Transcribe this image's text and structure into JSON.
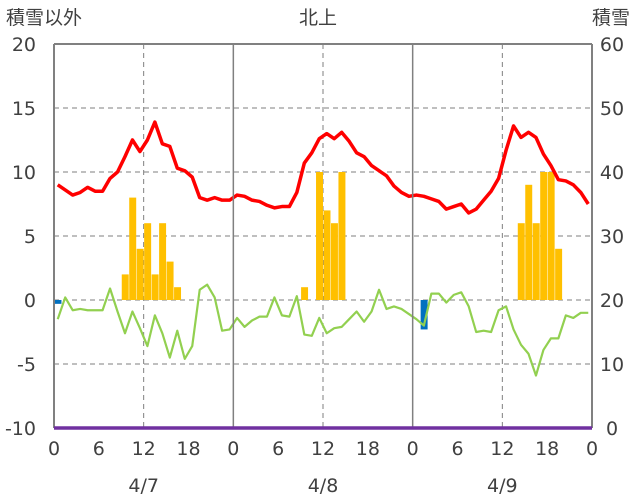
{
  "chart_data": {
    "type": "bar+line",
    "title": "北上",
    "y_left_label": "積雪以外",
    "y_right_label": "積雪",
    "y_left_ticks": [
      "20",
      "15",
      "10",
      "5",
      "0",
      "-5",
      "-10"
    ],
    "y_right_ticks": [
      "60",
      "50",
      "40",
      "30",
      "20",
      "10",
      "0"
    ],
    "x_tick_labels": [
      "0",
      "6",
      "12",
      "18",
      "0",
      "6",
      "12",
      "18",
      "0",
      "6",
      "12",
      "18",
      "0"
    ],
    "day_labels": [
      "4/7",
      "4/8",
      "4/9"
    ],
    "ylim_left": [
      -10,
      20
    ],
    "ylim_right": [
      0,
      60
    ],
    "hours_total": 72,
    "colors": {
      "temperature": "#ff0000",
      "dewpoint": "#92d050",
      "precip": "#ffc000",
      "negative": "#0070c0",
      "baseline": "#7030a0",
      "axis": "#808080"
    },
    "series": [
      {
        "name": "temperature",
        "values": [
          9.0,
          8.6,
          8.2,
          8.4,
          8.8,
          8.5,
          8.5,
          9.5,
          10.0,
          11.2,
          12.5,
          11.6,
          12.5,
          13.9,
          12.2,
          12.0,
          10.3,
          10.1,
          9.6,
          8.0,
          7.8,
          8.0,
          7.8,
          7.8,
          8.2,
          8.1,
          7.8,
          7.7,
          7.4,
          7.2,
          7.3,
          7.3,
          8.4,
          10.7,
          11.5,
          12.6,
          13.0,
          12.6,
          13.1,
          12.4,
          11.5,
          11.2,
          10.5,
          10.1,
          9.7,
          8.9,
          8.4,
          8.1,
          8.2,
          8.1,
          7.9,
          7.7,
          7.1,
          7.3,
          7.5,
          6.8,
          7.1,
          7.8,
          8.5,
          9.5,
          11.7,
          13.6,
          12.7,
          13.1,
          12.7,
          11.4,
          10.5,
          9.4,
          9.3,
          9.0,
          8.4,
          7.5
        ]
      },
      {
        "name": "dewpoint",
        "values": [
          -1.5,
          0.2,
          -0.8,
          -0.7,
          -0.8,
          -0.8,
          -0.8,
          0.9,
          -0.9,
          -2.6,
          -0.9,
          -2.2,
          -3.6,
          -1.2,
          -2.6,
          -4.5,
          -2.4,
          -4.6,
          -3.6,
          0.8,
          1.2,
          0.2,
          -2.4,
          -2.3,
          -1.4,
          -2.1,
          -1.6,
          -1.3,
          -1.3,
          0.2,
          -1.2,
          -1.3,
          0.3,
          -2.7,
          -2.8,
          -1.4,
          -2.6,
          -2.2,
          -2.1,
          -1.5,
          -0.9,
          -1.7,
          -0.9,
          0.8,
          -0.7,
          -0.5,
          -0.7,
          -1.1,
          -1.5,
          -2.0,
          0.5,
          0.5,
          -0.2,
          0.4,
          0.6,
          -0.5,
          -2.5,
          -2.4,
          -2.5,
          -0.8,
          -0.5,
          -2.3,
          -3.5,
          -4.2,
          -5.9,
          -3.9,
          -3.0,
          -3.0,
          -1.2,
          -1.4,
          -1.0,
          -1.0
        ]
      },
      {
        "name": "precip",
        "values": [
          0,
          0,
          0,
          0,
          0,
          0,
          0,
          0,
          0,
          2,
          8,
          4,
          6,
          2,
          6,
          3,
          1,
          0,
          0,
          0,
          0,
          0,
          0,
          0,
          0,
          0,
          0,
          0,
          0,
          0,
          0,
          0,
          0,
          1,
          0,
          10,
          7,
          6,
          10,
          0,
          0,
          0,
          0,
          0,
          0,
          0,
          0,
          0,
          0,
          0,
          0,
          0,
          0,
          0,
          0,
          0,
          0,
          0,
          0,
          0,
          0,
          0,
          6,
          9,
          6,
          10,
          10,
          4,
          0,
          0,
          0,
          0
        ]
      },
      {
        "name": "negative",
        "values": [
          -0.3,
          0,
          0,
          0,
          0,
          0,
          0,
          0,
          0,
          0,
          0,
          0,
          0,
          0,
          0,
          0,
          0,
          0,
          0,
          0,
          0,
          0,
          0,
          0,
          0,
          0,
          0,
          0,
          0,
          0,
          0,
          0,
          0,
          0,
          0,
          0,
          0,
          0,
          0,
          0,
          0,
          0,
          0,
          0,
          0,
          0,
          0,
          0,
          0,
          -2.3,
          0,
          0,
          0,
          0,
          0,
          0,
          0,
          0,
          0,
          0,
          0,
          0,
          0,
          0,
          0,
          0,
          0,
          0,
          0,
          0,
          0,
          0
        ]
      }
    ]
  }
}
